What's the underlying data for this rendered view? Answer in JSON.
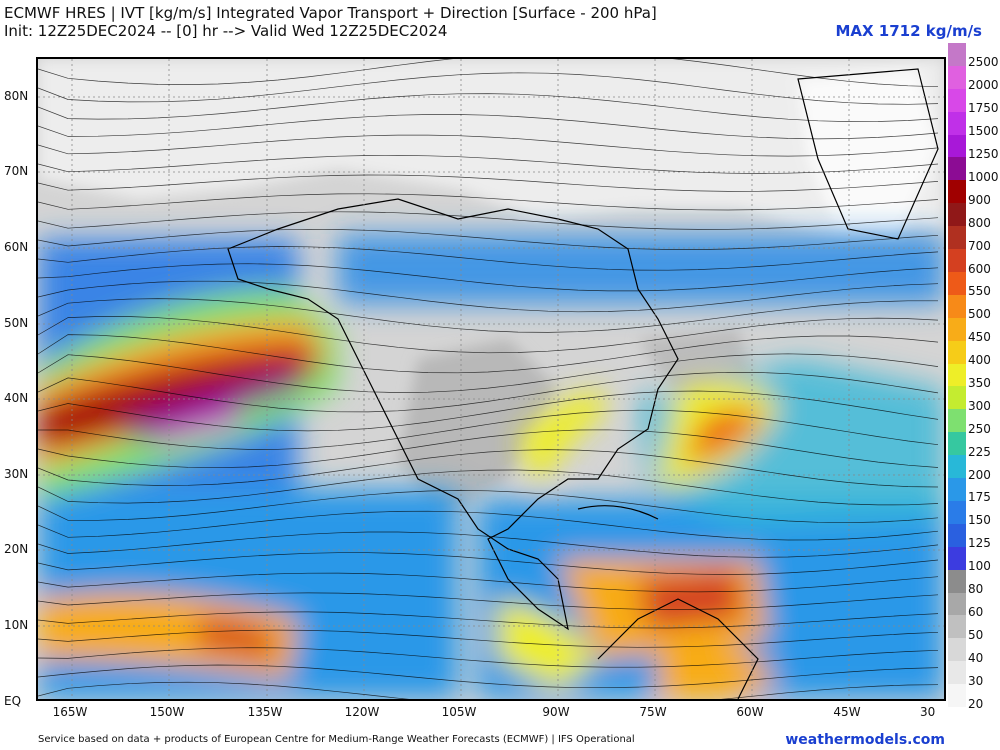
{
  "header": {
    "title": "ECMWF HRES | IVT [kg/m/s] Integrated Vapor Transport + Direction [Surface - 200 hPa]",
    "init_line": "Init: 12Z25DEC2024 -- [0] hr --> Valid Wed 12Z25DEC2024",
    "max_label": "MAX 1712 kg/m/s"
  },
  "axes": {
    "lat_labels": [
      "80N",
      "70N",
      "60N",
      "50N",
      "40N",
      "30N",
      "20N",
      "10N",
      "EQ"
    ],
    "lon_labels": [
      "165W",
      "150W",
      "135W",
      "120W",
      "105W",
      "90W",
      "75W",
      "60W",
      "45W",
      "30"
    ]
  },
  "colorbar": {
    "labels": [
      "2500",
      "2000",
      "1750",
      "1500",
      "1250",
      "1000",
      "900",
      "800",
      "700",
      "600",
      "550",
      "500",
      "450",
      "400",
      "350",
      "300",
      "250",
      "225",
      "200",
      "175",
      "150",
      "125",
      "100",
      "80",
      "60",
      "50",
      "40",
      "30",
      "20"
    ],
    "colors": [
      "#c478c8",
      "#e060e0",
      "#d848e8",
      "#c030e8",
      "#a818d8",
      "#8c0c94",
      "#a00000",
      "#901818",
      "#b03020",
      "#d44020",
      "#ee5a18",
      "#f78a18",
      "#f8ac18",
      "#f6cc18",
      "#eeee28",
      "#c4ec30",
      "#7ee070",
      "#36c8a0",
      "#28b8d8",
      "#2a98e8",
      "#2a7ce8",
      "#2a60e0",
      "#3c3ce0",
      "#8c8c8c",
      "#a8a8a8",
      "#c0c0c0",
      "#d8d8d8",
      "#e8e8e8",
      "#f6f6f6"
    ]
  },
  "footer": {
    "credit": "Service based on data + products of European Centre for Medium-Range Weather Forecasts (ECMWF) | IFS Operational",
    "site": "weathermodels.com"
  }
}
